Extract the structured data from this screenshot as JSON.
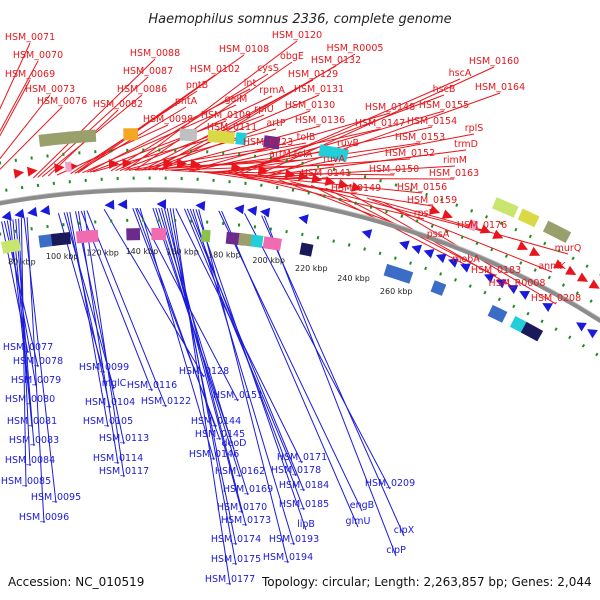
{
  "title": "Haemophilus somnus 2336, complete genome",
  "footer": {
    "accession": "Accession: NC_010519",
    "summary": "Topology: circular; Length: 2,263,857 bp; Genes: 2,044"
  },
  "colors": {
    "forward": "#e8161c",
    "reverse": "#1a1adc",
    "rna": "#f4a0c8",
    "backbone": "#8c8c8c",
    "dotted": "#1e8c1e"
  },
  "ticks": [
    "80 kbp",
    "100 kbp",
    "120 kbp",
    "140 kbp",
    "160 kbp",
    "180 kbp",
    "200 kbp",
    "220 kbp",
    "240 kbp",
    "260 kbp"
  ],
  "forward_labels": [
    "HSM_0071",
    "HSM_0070",
    "HSM_0069",
    "HSM_0073",
    "HSM_0076",
    "HSM_0088",
    "HSM_0087",
    "HSM_0086",
    "HSM_0082",
    "HSM_0098",
    "HSM_0108",
    "HSM_0102",
    "pntB",
    "pntA",
    "galM",
    "lnt",
    "HSM_0109",
    "HSM_0111",
    "HSM_0120",
    "cysS",
    "rpmA",
    "rplU",
    "artP",
    "HSM_0123",
    "artM",
    "tolA",
    "obgE",
    "HSM_0129",
    "HSM_0131",
    "HSM_0130",
    "HSM_0136",
    "tolB",
    "ruvA",
    "HSM_0141",
    "HSM_R0005",
    "HSM_0132",
    "ruvB",
    "HSM_0148",
    "HSM_0147",
    "HSM_0149",
    "HSM_0150",
    "HSM_0152",
    "HSM_0156",
    "HSM_0159",
    "rpsP",
    "HSM_0153",
    "HSM_0154",
    "HSM_0155",
    "hscB",
    "hscA",
    "HSM_0160",
    "HSM_0164",
    "rplS",
    "trmD",
    "rimM",
    "HSM_0163",
    "pssA",
    "HSM_0176",
    "mobA",
    "HSM_0183",
    "HSM_R0008",
    "anmK",
    "murQ",
    "HSM_0208"
  ],
  "reverse_labels": [
    "HSM_0077",
    "HSM_0078",
    "HSM_0079",
    "HSM_0080",
    "HSM_0081",
    "HSM_0083",
    "HSM_0084",
    "HSM_0085",
    "HSM_0095",
    "HSM_0096",
    "HSM_0099",
    "mglC",
    "HSM_0104",
    "HSM_0105",
    "HSM_0113",
    "HSM_0114",
    "HSM_0117",
    "HSM_0116",
    "HSM_0122",
    "HSM_0128",
    "HSM_0151",
    "HSM_0144",
    "HSM_0145",
    "HSM_0146",
    "deoD",
    "HSM_0162",
    "HSM_0171",
    "HSM_0178",
    "HSM_0169",
    "HSM_0184",
    "HSM_0170",
    "HSM_0185",
    "HSM_0173",
    "lipB",
    "HSM_0174",
    "HSM_0193",
    "HSM_0175",
    "HSM_0194",
    "HSM_0177",
    "engB",
    "glmU",
    "HSM_0209",
    "clpX",
    "clpP"
  ]
}
